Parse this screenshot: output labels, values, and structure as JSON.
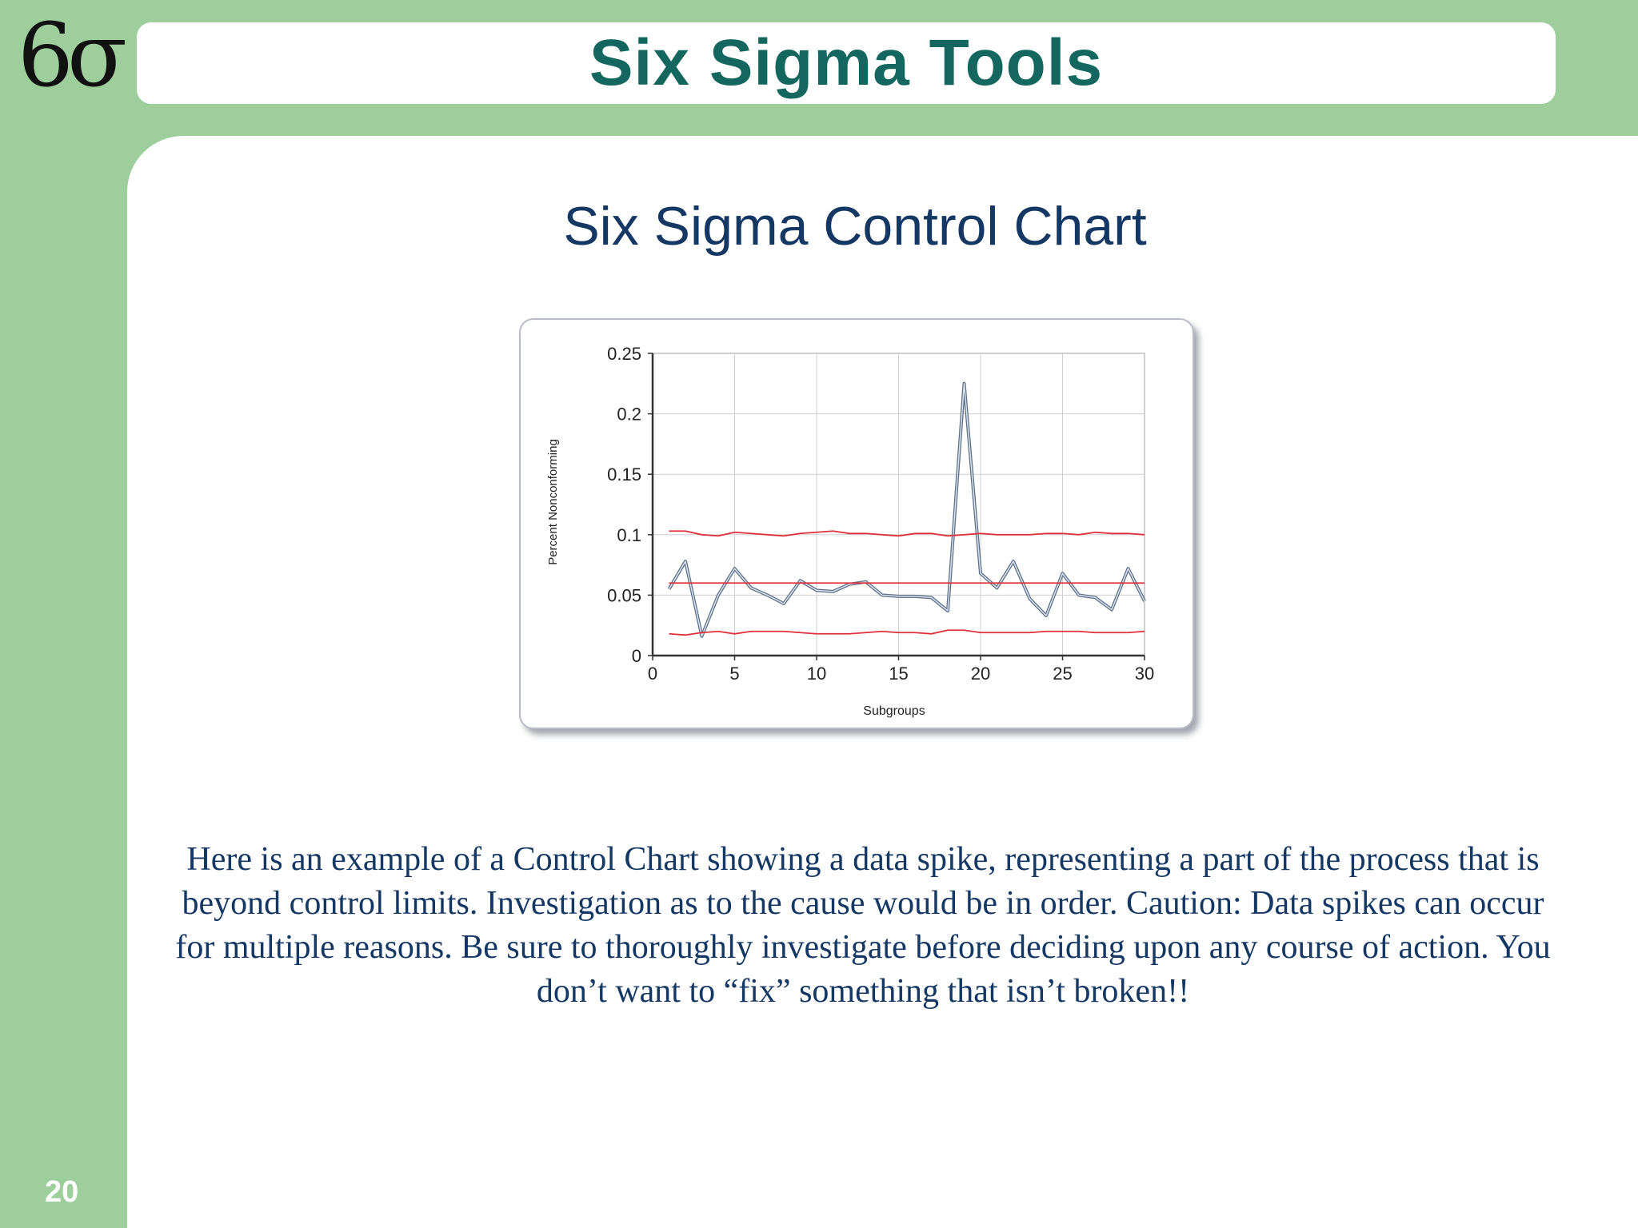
{
  "logo": "6σ",
  "header": {
    "title": "Six Sigma Tools"
  },
  "slide": {
    "subtitle": "Six Sigma Control Chart",
    "body": "Here is an example of a Control Chart showing a data spike, representing a part of the process that is beyond control limits.  Investigation as to the cause would be in order.  Caution: Data spikes can occur for multiple reasons.  Be sure to thoroughly investigate before deciding upon any course of action.  You don’t want to “fix” something that isn’t broken!!",
    "page_number": "20"
  },
  "chart_data": {
    "type": "line",
    "title": "",
    "xlabel": "Subgroups",
    "ylabel": "Percent Nonconforming",
    "xlim": [
      0,
      30
    ],
    "ylim": [
      0,
      0.25
    ],
    "x_ticks": [
      "0",
      "5",
      "10",
      "15",
      "20",
      "25",
      "30"
    ],
    "y_ticks": [
      "0",
      "0.05",
      "0.1",
      "0.15",
      "0.2",
      "0.25"
    ],
    "grid": true,
    "colors": {
      "data": "#7f95b2",
      "limits": "#e0303a",
      "axis": "#333333",
      "grid": "#cfcfcf"
    },
    "x": [
      1,
      2,
      3,
      4,
      5,
      6,
      7,
      8,
      9,
      10,
      11,
      12,
      13,
      14,
      15,
      16,
      17,
      18,
      19,
      20,
      21,
      22,
      23,
      24,
      25,
      26,
      27,
      28,
      29,
      30
    ],
    "series": [
      {
        "values": [
          0.055,
          0.078,
          0.016,
          0.05,
          0.072,
          0.056,
          0.05,
          0.043,
          0.062,
          0.054,
          0.053,
          0.059,
          0.061,
          0.05,
          0.049,
          0.049,
          0.048,
          0.037,
          0.225,
          0.068,
          0.056,
          0.078,
          0.047,
          0.033,
          0.068,
          0.05,
          0.048,
          0.038,
          0.072,
          0.045
        ]
      },
      {
        "values": [
          0.06,
          0.06,
          0.06,
          0.06,
          0.06,
          0.06,
          0.06,
          0.06,
          0.06,
          0.06,
          0.06,
          0.06,
          0.06,
          0.06,
          0.06,
          0.06,
          0.06,
          0.06,
          0.06,
          0.06,
          0.06,
          0.06,
          0.06,
          0.06,
          0.06,
          0.06,
          0.06,
          0.06,
          0.06,
          0.06
        ]
      },
      {
        "values": [
          0.103,
          0.103,
          0.1,
          0.099,
          0.102,
          0.101,
          0.1,
          0.099,
          0.101,
          0.102,
          0.103,
          0.101,
          0.101,
          0.1,
          0.099,
          0.101,
          0.101,
          0.099,
          0.1,
          0.101,
          0.1,
          0.1,
          0.1,
          0.101,
          0.101,
          0.1,
          0.102,
          0.101,
          0.101,
          0.1
        ]
      },
      {
        "values": [
          0.018,
          0.017,
          0.019,
          0.02,
          0.018,
          0.02,
          0.02,
          0.02,
          0.019,
          0.018,
          0.018,
          0.018,
          0.019,
          0.02,
          0.019,
          0.019,
          0.018,
          0.021,
          0.021,
          0.019,
          0.019,
          0.019,
          0.019,
          0.02,
          0.02,
          0.02,
          0.019,
          0.019,
          0.019,
          0.02
        ]
      }
    ]
  }
}
